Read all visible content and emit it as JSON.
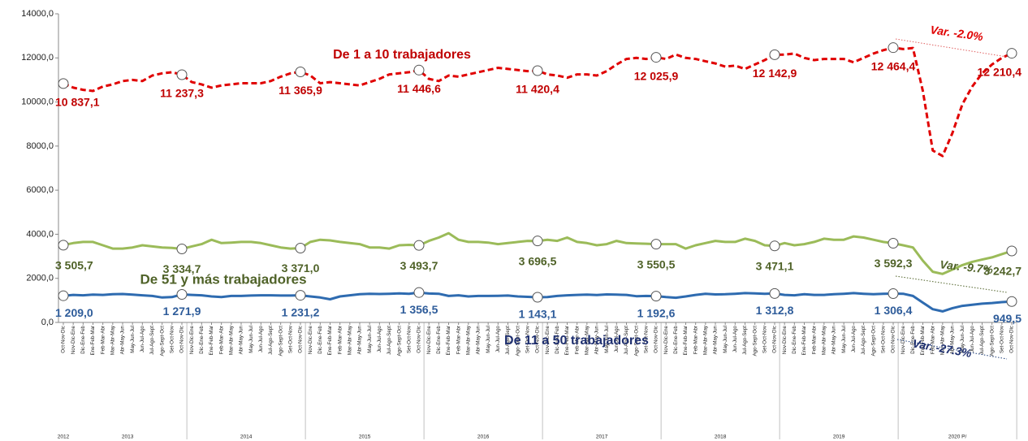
{
  "chart_data": {
    "type": "line",
    "categories": [
      "Oct-Nov-Dic",
      "Nov-Dic-Ene",
      "Dic-Ene-Feb",
      "Ene-Feb-Mar",
      "Feb-Mar-Abr",
      "Mar-Abr-May",
      "Abr-May-Jun",
      "May-Jun-Jul",
      "Jun-Jul-Ago",
      "Jul-Ago-Sept",
      "Ago-Sept-Oct",
      "Set-Oct-Nov",
      "Oct-Nov-Dic",
      "Nov-Dic-Ene",
      "Dic-Ene-Feb",
      "Ene-Feb-Mar",
      "Feb-Mar-Abr",
      "Mar-Abr-May",
      "Abr-May-Jun",
      "May-Jun-Jul",
      "Jun-Jul-Ago",
      "Jul-Ago-Sept",
      "Ago-Sept-Oct",
      "Set-Oct-Nov",
      "Oct-Nov-Dic",
      "Nov-Dic-Ene",
      "Dic-Ene-Feb",
      "Ene-Feb-Mar",
      "Feb-Mar-Abr",
      "Mar-Abr-May",
      "Abr-May-Jun",
      "May-Jun-Jul",
      "Jun-Jul-Ago",
      "Jul-Ago-Sept",
      "Ago-Sept-Oct",
      "Set-Oct-Nov",
      "Oct-Nov-Dic",
      "Nov-Dic-Ene",
      "Dic-Ene-Feb",
      "Ene-Feb-Mar",
      "Feb-Mar-Abr",
      "Mar-Abr-May",
      "Abr-May-Jun",
      "May-Jun-Jul",
      "Jun-Jul-Ago",
      "Jul-Ago-Sept",
      "Ago-Sept-Oct",
      "Set-Oct-Nov",
      "Oct-Nov-Dic",
      "Nov-Dic-Ene",
      "Dic-Ene-Feb",
      "Ene-Feb-Mar",
      "Feb-Mar-Abr",
      "Mar-Abr-May",
      "Abr-May-Jun",
      "May-Jun-Jul",
      "Jun-Jul-Ago",
      "Jul-Ago-Sept",
      "Ago-Sept-Oct",
      "Set-Oct-Nov",
      "Oct-Nov-Dic",
      "Nov-Dic-Ene",
      "Dic-Ene-Feb",
      "Ene-Feb-Mar",
      "Feb-Mar-Abr",
      "Mar-Abr-May",
      "Abr-May-Jun",
      "May-Jun-Jul",
      "Jun-Jul-Ago",
      "Jul-Ago-Sept",
      "Ago-Sept-Oct",
      "Set-Oct-Nov",
      "Oct-Nov-Dic",
      "Nov-Dic-Ene",
      "Dic-Ene-Feb",
      "Ene-Feb-Mar",
      "Feb-Mar-Abr",
      "Mar-Abr-May",
      "Abr-May-Jun",
      "May-Jun-Jul",
      "Jun-Jul-Ago",
      "Jul-Ago-Sept",
      "Ago-Sept-Oct",
      "Set-Oct-Nov",
      "Oct-Nov-Dic",
      "Nov-Dic-Ene",
      "Dic-Ene-Feb",
      "Ene-Feb-Mar",
      "Feb-Mar-Abr",
      "Mar-Abr-May",
      "Abr-May-Jun",
      "May-Jun-Jul",
      "Jun-Jul-Ago",
      "Jul-Ago-Sept",
      "Ago-Sept-Oct",
      "Set-Oct-Nov",
      "Oct-Nov-Dic"
    ],
    "groups": [
      "2012",
      "2013",
      "2014",
      "2015",
      "2016",
      "2017",
      "2018",
      "2019",
      "2020 P/"
    ],
    "ylim": [
      0,
      14000
    ],
    "yticks": [
      {
        "value": 0,
        "label": "0,0"
      },
      {
        "value": 2000,
        "label": "2000,0"
      },
      {
        "value": 4000,
        "label": "4000,0"
      },
      {
        "value": 6000,
        "label": "6000,0"
      },
      {
        "value": 8000,
        "label": "8000,0"
      },
      {
        "value": 10000,
        "label": "10000,0"
      },
      {
        "value": 12000,
        "label": "12000,0"
      },
      {
        "value": 14000,
        "label": "14000,0"
      }
    ],
    "grid": false,
    "series": [
      {
        "name": "De 1 a 10  trabajadores",
        "color": "#e00000",
        "dashed": true,
        "values": [
          10837.1,
          10650,
          10550,
          10500,
          10700,
          10800,
          10950,
          11000,
          10950,
          11200,
          11300,
          11350,
          11237.3,
          10900,
          10800,
          10650,
          10750,
          10800,
          10850,
          10850,
          10850,
          10950,
          11150,
          11300,
          11365.9,
          11200,
          10850,
          10900,
          10850,
          10800,
          10750,
          10900,
          11050,
          11250,
          11300,
          11350,
          11446.6,
          11050,
          10950,
          11200,
          11150,
          11250,
          11350,
          11450,
          11550,
          11500,
          11450,
          11400,
          11420.4,
          11250,
          11200,
          11100,
          11250,
          11250,
          11200,
          11400,
          11700,
          11950,
          12000,
          11950,
          12025.9,
          11950,
          12150,
          12000,
          11950,
          11850,
          11750,
          11600,
          11650,
          11500,
          11700,
          11900,
          12142.9,
          12150,
          12200,
          12000,
          11900,
          11950,
          11950,
          11950,
          11800,
          12000,
          12200,
          12350,
          12464.4,
          12400,
          12450,
          10500,
          7800,
          7550,
          8600,
          9900,
          10700,
          11300,
          11700,
          12000,
          12210.4
        ],
        "value_labels": [
          "10 837,1",
          null,
          null,
          null,
          null,
          null,
          null,
          null,
          null,
          null,
          null,
          null,
          "11 237,3",
          null,
          null,
          null,
          null,
          null,
          null,
          null,
          null,
          null,
          null,
          null,
          "11 365,9",
          null,
          null,
          null,
          null,
          null,
          null,
          null,
          null,
          null,
          null,
          null,
          "11 446,6",
          null,
          null,
          null,
          null,
          null,
          null,
          null,
          null,
          null,
          null,
          null,
          "11 420,4",
          null,
          null,
          null,
          null,
          null,
          null,
          null,
          null,
          null,
          null,
          null,
          "12 025,9",
          null,
          null,
          null,
          null,
          null,
          null,
          null,
          null,
          null,
          null,
          null,
          "12 142,9",
          null,
          null,
          null,
          null,
          null,
          null,
          null,
          null,
          null,
          null,
          null,
          "12 464,4",
          null,
          null,
          null,
          null,
          null,
          null,
          null,
          null,
          null,
          null,
          null,
          "12 210,4"
        ]
      },
      {
        "name": "De 51 y más trabajadores",
        "color": "#9bbb59",
        "dashed": false,
        "values": [
          3505.7,
          3600,
          3650,
          3650,
          3500,
          3350,
          3350,
          3400,
          3500,
          3450,
          3400,
          3380,
          3334.7,
          3450,
          3550,
          3750,
          3600,
          3620,
          3650,
          3650,
          3600,
          3500,
          3400,
          3350,
          3371.0,
          3650,
          3750,
          3720,
          3650,
          3600,
          3550,
          3400,
          3400,
          3350,
          3500,
          3520,
          3493.7,
          3700,
          3850,
          4050,
          3750,
          3650,
          3650,
          3620,
          3550,
          3600,
          3650,
          3700,
          3696.5,
          3750,
          3700,
          3850,
          3650,
          3600,
          3500,
          3550,
          3700,
          3600,
          3580,
          3570,
          3550.5,
          3550,
          3550,
          3350,
          3500,
          3600,
          3700,
          3650,
          3650,
          3800,
          3700,
          3500,
          3471.1,
          3600,
          3500,
          3550,
          3650,
          3800,
          3750,
          3750,
          3900,
          3850,
          3750,
          3650,
          3592.3,
          3500,
          3400,
          2800,
          2300,
          2200,
          2400,
          2600,
          2750,
          2850,
          2950,
          3100,
          3242.7
        ],
        "value_labels": [
          "3 505,7",
          null,
          null,
          null,
          null,
          null,
          null,
          null,
          null,
          null,
          null,
          null,
          "3 334,7",
          null,
          null,
          null,
          null,
          null,
          null,
          null,
          null,
          null,
          null,
          null,
          "3 371,0",
          null,
          null,
          null,
          null,
          null,
          null,
          null,
          null,
          null,
          null,
          null,
          "3 493,7",
          null,
          null,
          null,
          null,
          null,
          null,
          null,
          null,
          null,
          null,
          null,
          "3 696,5",
          null,
          null,
          null,
          null,
          null,
          null,
          null,
          null,
          null,
          null,
          null,
          "3 550,5",
          null,
          null,
          null,
          null,
          null,
          null,
          null,
          null,
          null,
          null,
          null,
          "3 471,1",
          null,
          null,
          null,
          null,
          null,
          null,
          null,
          null,
          null,
          null,
          null,
          "3 592,3",
          null,
          null,
          null,
          null,
          null,
          null,
          null,
          null,
          null,
          null,
          null,
          "3 242,7"
        ]
      },
      {
        "name": "De 11  a 50 trabajadores",
        "color": "#2e6bb0",
        "dashed": false,
        "values": [
          1209.0,
          1250,
          1230,
          1260,
          1250,
          1280,
          1290,
          1260,
          1230,
          1200,
          1130,
          1150,
          1271.9,
          1250,
          1230,
          1180,
          1150,
          1200,
          1200,
          1220,
          1230,
          1230,
          1220,
          1220,
          1231.2,
          1180,
          1130,
          1050,
          1180,
          1230,
          1280,
          1300,
          1290,
          1300,
          1320,
          1300,
          1356.5,
          1310,
          1300,
          1200,
          1230,
          1180,
          1200,
          1200,
          1210,
          1220,
          1180,
          1160,
          1143.1,
          1150,
          1200,
          1230,
          1250,
          1260,
          1240,
          1270,
          1260,
          1250,
          1190,
          1200,
          1192.6,
          1150,
          1120,
          1180,
          1250,
          1300,
          1270,
          1280,
          1300,
          1330,
          1320,
          1300,
          1312.8,
          1250,
          1230,
          1280,
          1250,
          1250,
          1280,
          1300,
          1330,
          1300,
          1280,
          1300,
          1306.4,
          1300,
          1200,
          900,
          600,
          500,
          650,
          750,
          800,
          850,
          880,
          920,
          949.5
        ],
        "value_labels": [
          "1 209,0",
          null,
          null,
          null,
          null,
          null,
          null,
          null,
          null,
          null,
          null,
          null,
          "1 271,9",
          null,
          null,
          null,
          null,
          null,
          null,
          null,
          null,
          null,
          null,
          null,
          "1 231,2",
          null,
          null,
          null,
          null,
          null,
          null,
          null,
          null,
          null,
          null,
          null,
          "1 356,5",
          null,
          null,
          null,
          null,
          null,
          null,
          null,
          null,
          null,
          null,
          null,
          "1 143,1",
          null,
          null,
          null,
          null,
          null,
          null,
          null,
          null,
          null,
          null,
          null,
          "1 192,6",
          null,
          null,
          null,
          null,
          null,
          null,
          null,
          null,
          null,
          null,
          null,
          "1 312,8",
          null,
          null,
          null,
          null,
          null,
          null,
          null,
          null,
          null,
          null,
          null,
          "1 306,4",
          null,
          null,
          null,
          null,
          null,
          null,
          null,
          null,
          null,
          null,
          null,
          "949,5"
        ]
      }
    ],
    "annotations": [
      "Var. -2.0%",
      "Var. -9.7%",
      "Var. -27.3%"
    ]
  }
}
